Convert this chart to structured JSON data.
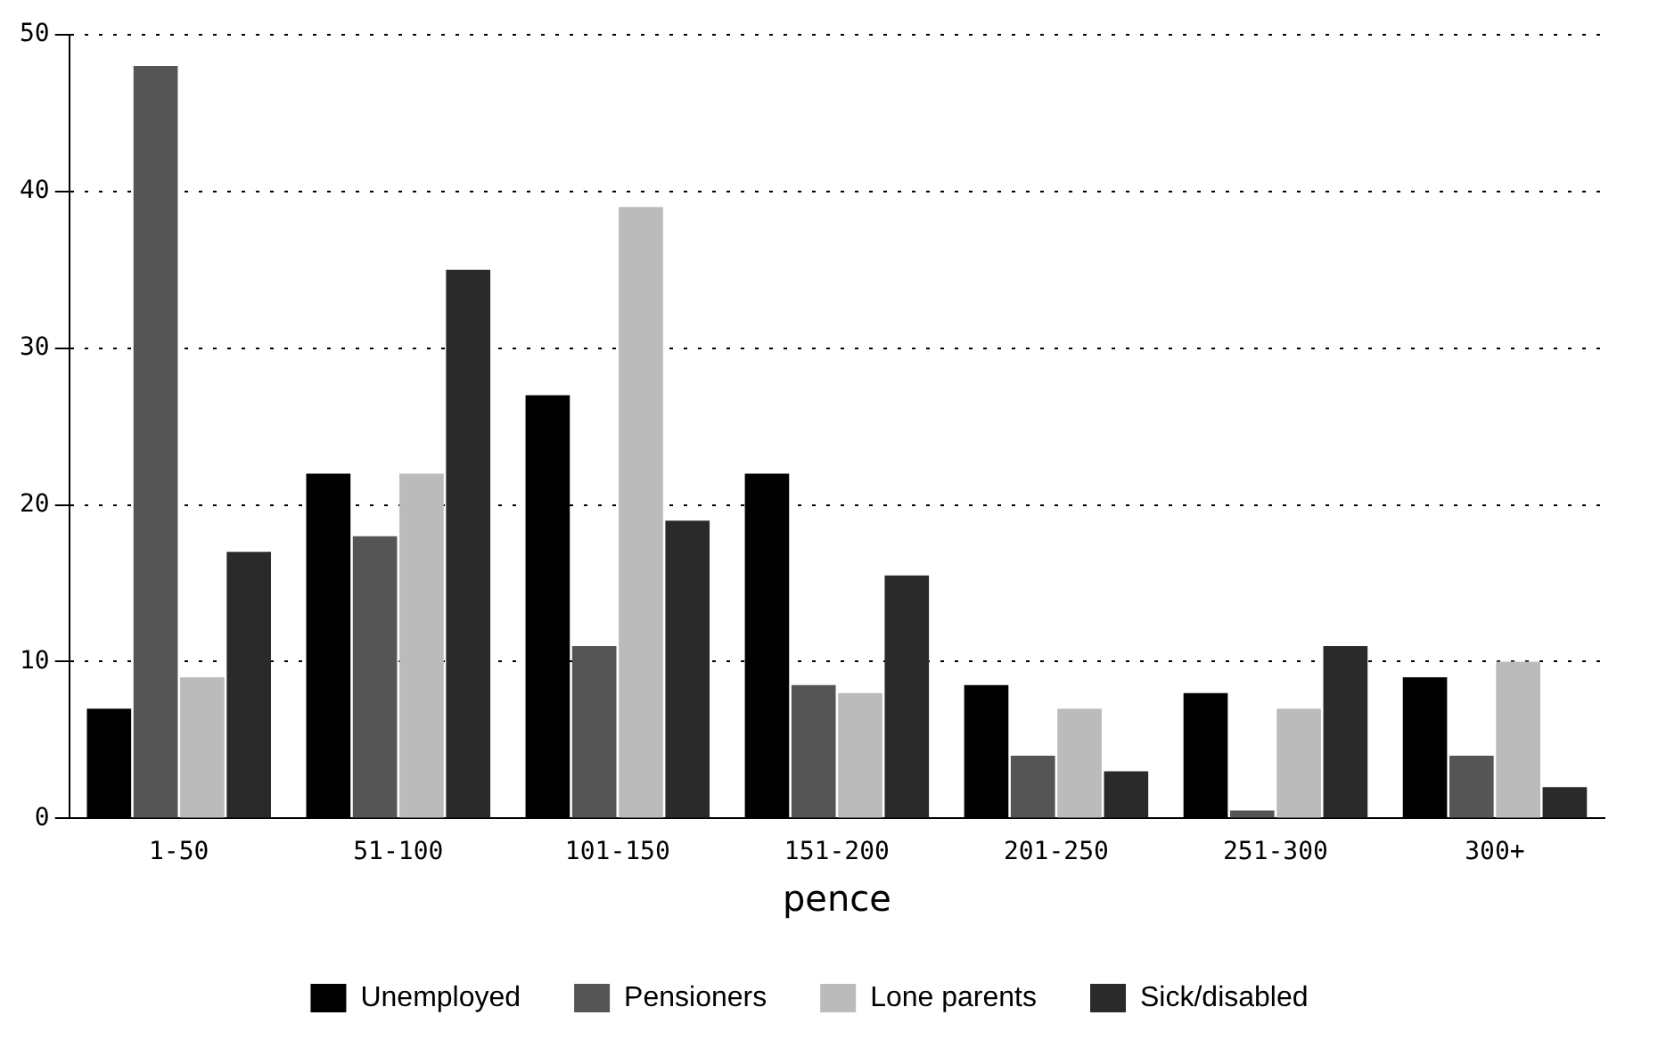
{
  "chart_data": {
    "type": "bar",
    "xlabel": "pence",
    "categories": [
      "1-50",
      "51-100",
      "101-150",
      "151-200",
      "201-250",
      "251-300",
      "300+"
    ],
    "series": [
      {
        "name": "Unemployed",
        "color": "#000000",
        "values": [
          7,
          22,
          27,
          22,
          8.5,
          8,
          9
        ]
      },
      {
        "name": "Pensioners",
        "color": "#555555",
        "values": [
          48,
          18,
          11,
          8.5,
          4,
          0.5,
          4
        ]
      },
      {
        "name": "Lone parents",
        "color": "#bbbbbb",
        "values": [
          9,
          22,
          39,
          8,
          7,
          7,
          10
        ]
      },
      {
        "name": "Sick/disabled",
        "color": "#2a2a2a",
        "values": [
          17,
          35,
          19,
          15.5,
          3,
          11,
          2
        ]
      }
    ],
    "ylim": [
      0,
      50
    ],
    "yticks": [
      0,
      10,
      20,
      30,
      40,
      50
    ],
    "grid": "y",
    "legend": "bottom"
  }
}
